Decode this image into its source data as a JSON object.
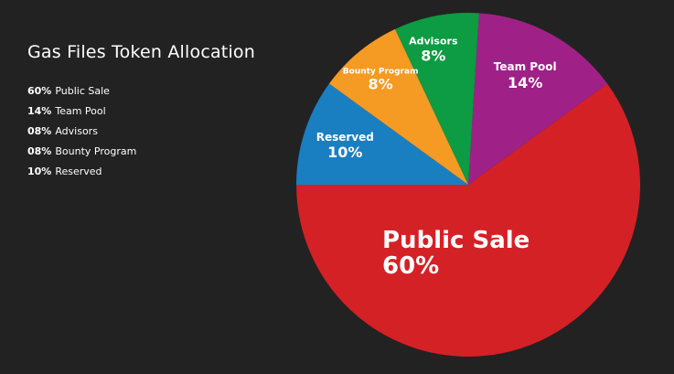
{
  "chart_data": {
    "type": "pie",
    "title": "Gas Files Token Allocation",
    "slices": [
      {
        "label": "Public Sale",
        "value": 60,
        "pct_text": "60%",
        "legend_pct": "60%",
        "color": "#d42126"
      },
      {
        "label": "Team Pool",
        "value": 14,
        "pct_text": "14%",
        "legend_pct": "14%",
        "color": "#9f2187"
      },
      {
        "label": "Advisors",
        "value": 8,
        "pct_text": "8%",
        "legend_pct": "08%",
        "color": "#0d9b43"
      },
      {
        "label": "Bounty Program",
        "value": 8,
        "pct_text": "8%",
        "legend_pct": "08%",
        "color": "#f59a23"
      },
      {
        "label": "Reserved",
        "value": 10,
        "pct_text": "10%",
        "legend_pct": "10%",
        "color": "#1a7fc0"
      }
    ],
    "legend_placement": "left"
  },
  "background": "#222222"
}
